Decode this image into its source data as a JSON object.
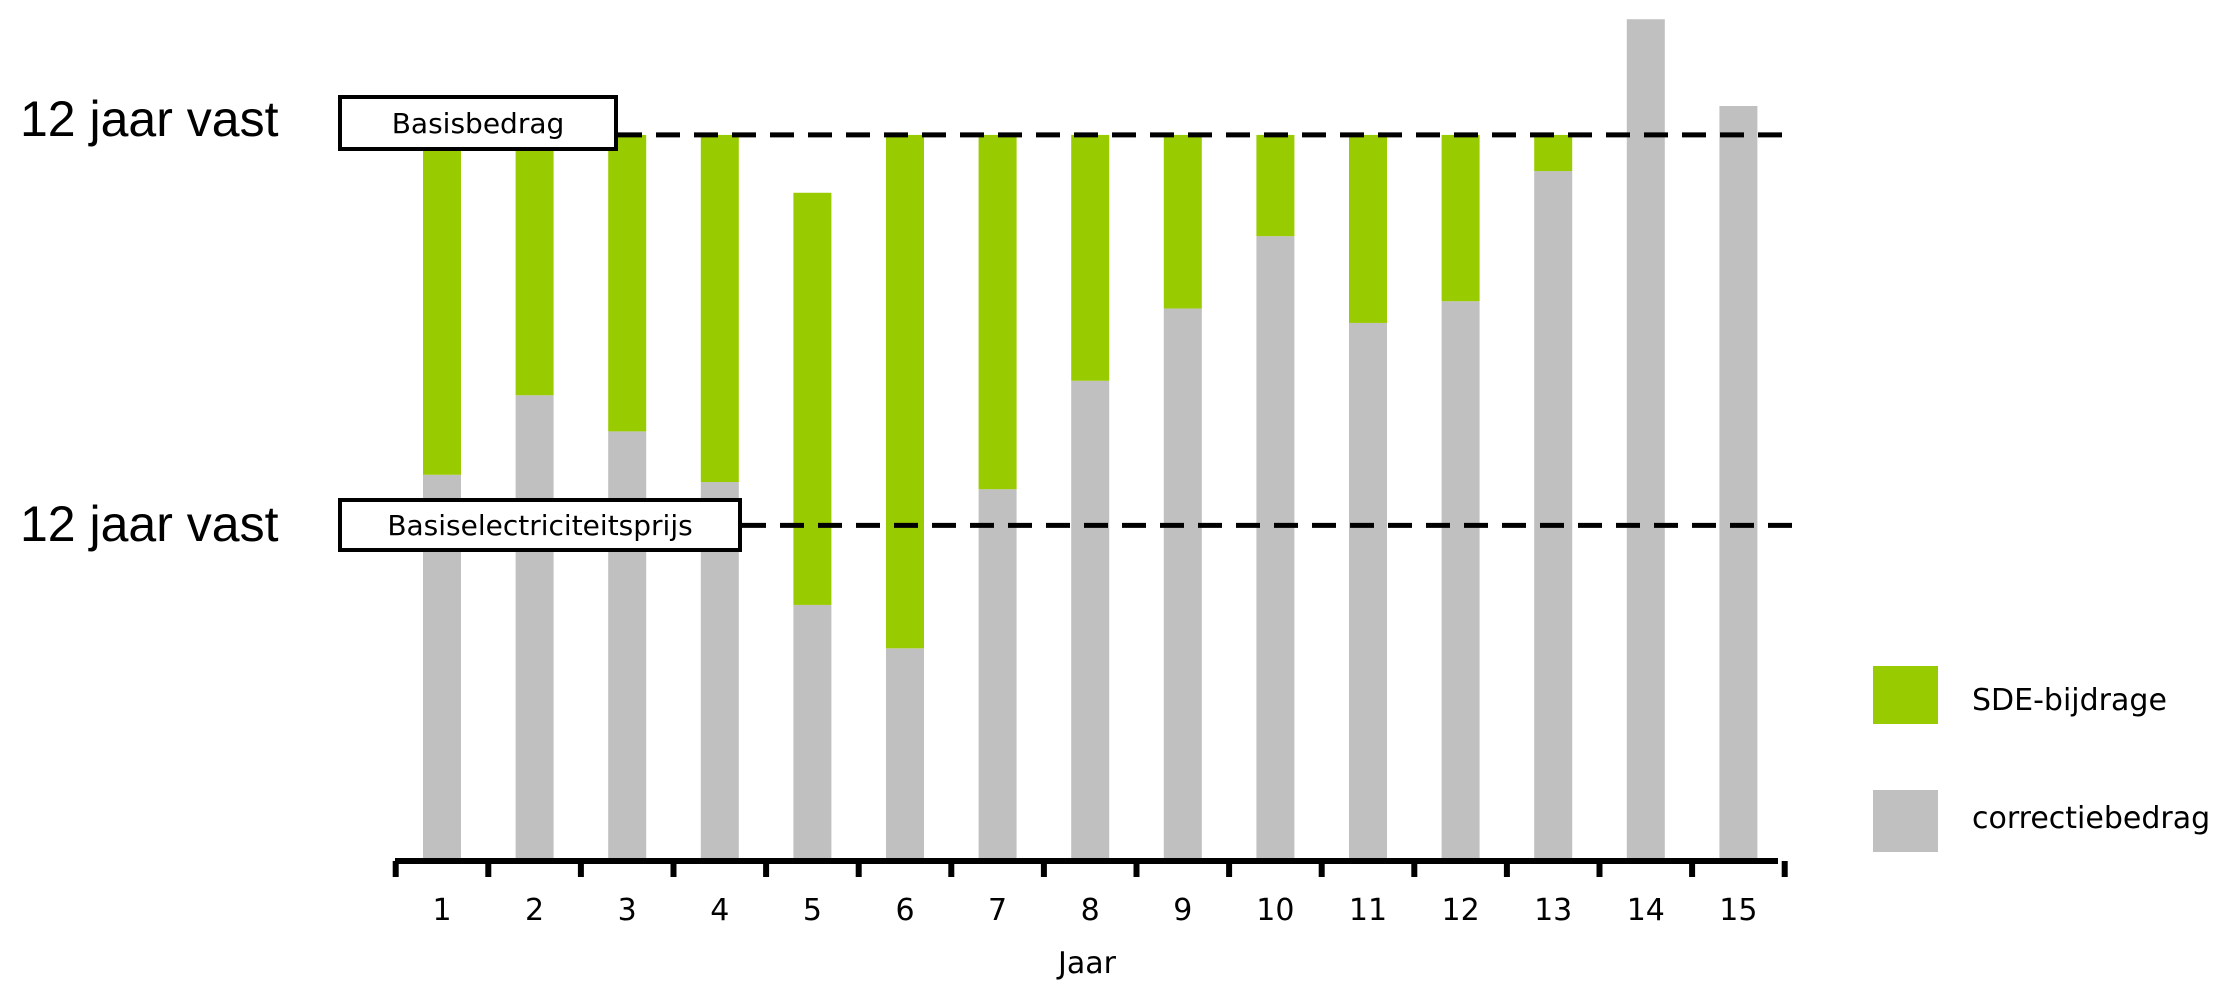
{
  "chart_data": {
    "type": "bar",
    "stacked": true,
    "categories": [
      "1",
      "2",
      "3",
      "4",
      "5",
      "6",
      "7",
      "8",
      "9",
      "10",
      "11",
      "12",
      "13",
      "14",
      "15"
    ],
    "series": [
      {
        "name": "correctiebedrag",
        "color": "#c0c0c0",
        "values": [
          53,
          64,
          59,
          52,
          35,
          29,
          51,
          66,
          76,
          86,
          74,
          77,
          95,
          116,
          104
        ]
      },
      {
        "name": "SDE-bijdrage",
        "color": "#99cc00",
        "values": [
          47,
          36,
          41,
          48,
          57,
          71,
          49,
          34,
          24,
          14,
          26,
          23,
          5,
          0,
          0
        ]
      }
    ],
    "reference_lines": [
      {
        "label": "Basisbedrag",
        "side_label": "12 jaar vast",
        "value": 100
      },
      {
        "label": "Basiselectriciteitsprijs",
        "side_label": "12 jaar vast",
        "value": 46
      }
    ],
    "xlabel": "Jaar",
    "ylabel": "",
    "ylim": [
      0,
      117
    ],
    "y_axis_visible": false,
    "grid": false,
    "legend_placement": "right"
  }
}
